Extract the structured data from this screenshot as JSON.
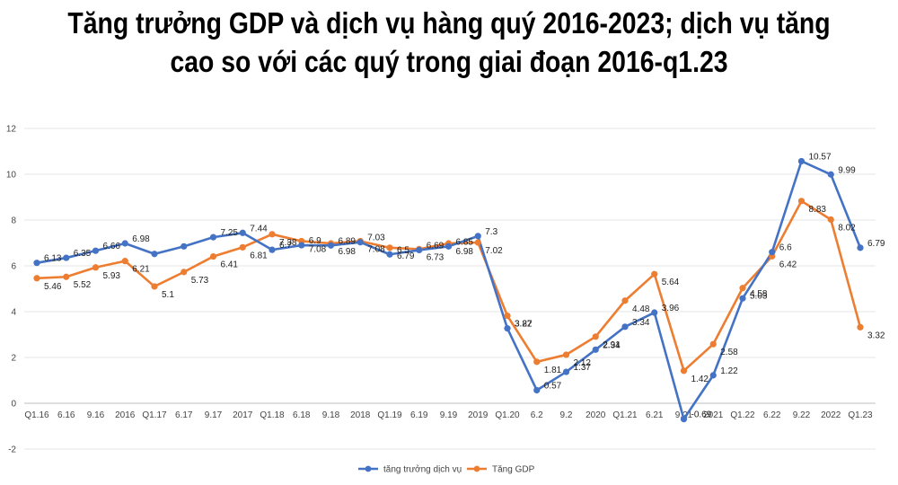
{
  "title": "Tăng trưởng GDP và dịch vụ hàng quý 2016-2023; dịch vụ tăng cao so với các quý trong giai đoạn 2016-q1.23",
  "chart_data": {
    "type": "line",
    "title": "Tăng trưởng GDP và dịch vụ hàng quý 2016-2023; dịch vụ tăng cao so với các quý trong giai đoạn 2016-q1.23",
    "xlabel": "",
    "ylabel": "",
    "ylim": [
      -2,
      12
    ],
    "yticks": [
      -2,
      0,
      2,
      4,
      6,
      8,
      10,
      12
    ],
    "grid": true,
    "legend_position": "bottom",
    "x_tick_labels": [
      "Q1.16",
      "6.16",
      "9.16",
      "2016",
      "Q1.17",
      "6.17",
      "9.17",
      "2017",
      "Q1.18",
      "6.18",
      "9.18",
      "2018",
      "Q1.19",
      "6.19",
      "9.19",
      "2019",
      "Q1.20",
      "6.2",
      "9.2",
      "2020",
      "Q1.21",
      "6.21",
      "9.21",
      "2021",
      "Q1.22",
      "6.22",
      "9.22",
      "2022",
      "Q1.23"
    ],
    "series": [
      {
        "name": "tăng trưởng dịch vụ",
        "color": "#4472C4",
        "values": [
          6.13,
          6.35,
          6.66,
          6.98,
          6.52,
          6.85,
          7.25,
          7.44,
          6.7,
          6.9,
          6.89,
          7.03,
          6.5,
          6.69,
          6.85,
          7.3,
          3.27,
          0.57,
          1.37,
          2.34,
          3.34,
          3.96,
          -0.69,
          1.22,
          4.58,
          6.6,
          10.57,
          9.99,
          6.79
        ],
        "labels": [
          "6.13",
          "6.35",
          "6.66",
          "6.98",
          "",
          "",
          "7.25",
          "7.44",
          "6.7",
          "6.9",
          "6.89",
          "7.03",
          "6.5",
          "6.69",
          "6.85",
          "7.3",
          "3.27",
          "0.57",
          "1.37",
          "2.34",
          "3.34",
          "3.96",
          "-0.69",
          "1.22",
          "4.58",
          "6.6",
          "10.57",
          "9.99",
          "6.79"
        ]
      },
      {
        "name": "Tăng GDP",
        "color": "#ED7D31",
        "values": [
          5.46,
          5.52,
          5.93,
          6.21,
          5.1,
          5.73,
          6.41,
          6.81,
          7.38,
          7.08,
          6.98,
          7.08,
          6.79,
          6.73,
          6.98,
          7.02,
          3.82,
          1.81,
          2.12,
          2.91,
          4.48,
          5.64,
          1.42,
          2.58,
          5.03,
          6.42,
          8.83,
          8.02,
          3.32
        ],
        "labels": [
          "5.46",
          "5.52",
          "5.93",
          "6.21",
          "5.1",
          "5.73",
          "6.41",
          "6.81",
          "7.38",
          "7.08",
          "6.98",
          "7.08",
          "6.79",
          "6.73",
          "6.98",
          "7.02",
          "3.82",
          "1.81",
          "2.12",
          "2.91",
          "4.48",
          "5.64",
          "1.42",
          "2.58",
          "5.03",
          "6.42",
          "8.83",
          "8.02",
          "3.32"
        ]
      }
    ]
  }
}
